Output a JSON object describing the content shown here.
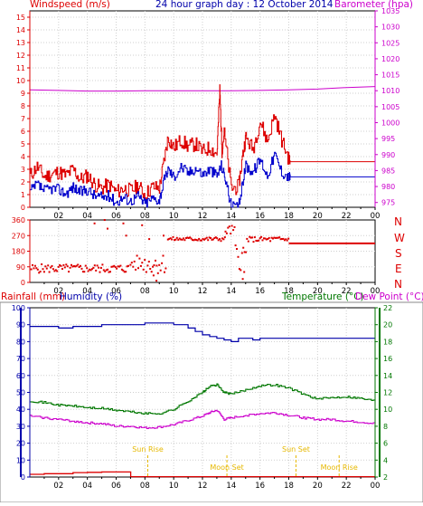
{
  "chart_data": [
    {
      "id": "wind_baro",
      "type": "line",
      "title": "24 hour graph day : 12 October 2014",
      "left_axis_label": "Windspeed (m/s)",
      "right_axis_label": "Barometer (hpa)",
      "left_ylim": [
        0,
        15.5
      ],
      "right_ylim": [
        973.5,
        1035
      ],
      "left_ticks": [
        0,
        1,
        2,
        3,
        4,
        5,
        6,
        7,
        8,
        9,
        10,
        11,
        12,
        13,
        14,
        15
      ],
      "right_ticks": [
        975,
        980,
        985,
        990,
        995,
        1000,
        1005,
        1010,
        1015,
        1020,
        1025,
        1030,
        1035
      ],
      "x_ticks": [
        "02",
        "04",
        "06",
        "08",
        "10",
        "12",
        "14",
        "16",
        "18",
        "20",
        "22",
        "00"
      ],
      "series": [
        {
          "name": "Barometer",
          "axis": "right",
          "color": "#cc00cc",
          "x": [
            0,
            2,
            4,
            6,
            8,
            10,
            12,
            14,
            16,
            18,
            20,
            22,
            24
          ],
          "values": [
            1010.3,
            1010.1,
            1009.9,
            1009.9,
            1010.0,
            1010.0,
            1010.0,
            1010.0,
            1010.1,
            1010.3,
            1010.5,
            1011.0,
            1011.3
          ]
        },
        {
          "name": "Gust",
          "axis": "left",
          "color": "#dd0000",
          "x": [
            0,
            0.5,
            1,
            1.5,
            2,
            2.5,
            3,
            3.5,
            4,
            4.5,
            5,
            5.5,
            6,
            6.5,
            7,
            7.5,
            8,
            8.5,
            9,
            9.3,
            9.6,
            10,
            10.5,
            11,
            11.5,
            12,
            12.5,
            13,
            13.2,
            13.35,
            13.5,
            14,
            14.5,
            14.8,
            15,
            15.5,
            16,
            16.5,
            17,
            17.5,
            18,
            18.1,
            24
          ],
          "values": [
            2.5,
            3.2,
            2.4,
            2.6,
            2.8,
            2.5,
            3.0,
            2.2,
            2.5,
            1.8,
            1.5,
            1.8,
            1.2,
            1.5,
            1.3,
            1.7,
            1.0,
            1.6,
            1.5,
            3.5,
            5.5,
            4.7,
            5.3,
            4.8,
            5.0,
            4.4,
            4.7,
            4.2,
            9.3,
            4.5,
            5.8,
            1.5,
            1.6,
            4.2,
            5.5,
            4.6,
            6.8,
            5.2,
            7.3,
            5.3,
            3.8,
            3.6,
            3.6
          ]
        },
        {
          "name": "Wind speed",
          "axis": "left",
          "color": "#0000cc",
          "x": [
            0,
            0.5,
            1,
            1.5,
            2,
            2.5,
            3,
            3.5,
            4,
            4.5,
            5,
            5.5,
            6,
            6.5,
            7,
            7.5,
            8,
            8.5,
            9,
            9.3,
            9.6,
            10,
            10.5,
            11,
            11.5,
            12,
            12.5,
            13,
            13.3,
            13.6,
            14,
            14.5,
            14.8,
            15,
            15.5,
            16,
            16.5,
            17,
            17.5,
            18,
            18.1,
            24
          ],
          "values": [
            1.2,
            1.8,
            1.3,
            1.5,
            1.4,
            1.1,
            1.6,
            1.2,
            1.4,
            0.9,
            0.8,
            0.9,
            0.4,
            0.8,
            0.5,
            0.9,
            0.3,
            0.7,
            0.6,
            2.0,
            3.0,
            2.4,
            3.2,
            2.7,
            3.1,
            2.6,
            3.0,
            2.5,
            3.3,
            2.2,
            0,
            0,
            2.0,
            3.3,
            2.8,
            3.8,
            2.5,
            4.2,
            2.8,
            2.4,
            2.4,
            2.4
          ]
        }
      ]
    },
    {
      "id": "wind_dir",
      "type": "scatter",
      "right_axis_label": [
        "N",
        "W",
        "S",
        "E",
        "N"
      ],
      "ylim": [
        0,
        360
      ],
      "left_ticks": [
        0,
        90,
        180,
        270,
        360
      ],
      "x_ticks": [
        "02",
        "04",
        "06",
        "08",
        "10",
        "12",
        "14",
        "16",
        "18",
        "20",
        "22",
        "00"
      ],
      "series": [
        {
          "name": "Direction",
          "color": "#dd0000",
          "segments": [
            {
              "x0": 0.1,
              "x1": 6.9,
              "base": 80,
              "amp": 25
            },
            {
              "x0": 7.0,
              "x1": 8.0,
              "base": 110,
              "amp": 45
            },
            {
              "x0": 8.1,
              "x1": 9.5,
              "base": 110,
              "amp": 60
            },
            {
              "x0": 9.6,
              "x1": 13.6,
              "base": 250,
              "amp": 12
            },
            {
              "x0": 13.6,
              "x1": 14.3,
              "base": 300,
              "amp": 30
            },
            {
              "x0": 14.3,
              "x1": 15.1,
              "base": 150,
              "amp": 80
            },
            {
              "x0": 15.1,
              "x1": 18.0,
              "base": 248,
              "amp": 15
            }
          ],
          "outliers": [
            [
              4.5,
              340
            ],
            [
              5.2,
              360
            ],
            [
              5.4,
              310
            ],
            [
              6.5,
              340
            ],
            [
              6.7,
              270
            ],
            [
              7.8,
              330
            ],
            [
              8.3,
              250
            ],
            [
              8.6,
              40
            ],
            [
              8.8,
              10
            ],
            [
              9.3,
              270
            ],
            [
              14.8,
              20
            ],
            [
              14.9,
              60
            ]
          ],
          "flat": {
            "x0": 18.0,
            "x1": 24,
            "value": 225
          }
        }
      ]
    },
    {
      "id": "temp_hum",
      "type": "line",
      "left_axis_label": "Rainfall (mm)",
      "left_axis_label_2": "Humidity (%)",
      "right_axis_label": "Temperature (°C)",
      "right_axis_label_2": "Dew Point (°C)",
      "left_ylim": [
        0,
        100
      ],
      "right_ylim": [
        2,
        22
      ],
      "left_ticks": [
        0,
        10,
        20,
        30,
        40,
        50,
        60,
        70,
        80,
        90,
        100
      ],
      "right_ticks": [
        2,
        4,
        6,
        8,
        10,
        12,
        14,
        16,
        18,
        20,
        22
      ],
      "x_ticks": [
        "02",
        "04",
        "06",
        "08",
        "10",
        "12",
        "14",
        "16",
        "18",
        "20",
        "22",
        "00"
      ],
      "annotations": [
        {
          "label": "Sun Rise",
          "x": 8.2
        },
        {
          "label": "Moon Set",
          "x": 13.7
        },
        {
          "label": "Sun Set",
          "x": 18.5
        },
        {
          "label": "Moon Rise",
          "x": 21.5
        }
      ],
      "series": [
        {
          "name": "Humidity",
          "axis": "left",
          "color": "#0000aa",
          "x": [
            0,
            1.5,
            2,
            3,
            4,
            5,
            6,
            7,
            8,
            9,
            10,
            11,
            11.5,
            12,
            12.5,
            13,
            13.5,
            14,
            14.5,
            15,
            15.5,
            16,
            17,
            18,
            20,
            22,
            24
          ],
          "values": [
            89,
            89,
            88,
            89,
            89,
            90,
            90,
            90,
            91,
            91,
            90,
            88,
            86,
            84,
            83,
            82,
            81,
            80,
            82,
            82,
            81,
            82,
            82,
            82,
            82,
            82,
            82
          ]
        },
        {
          "name": "Temperature",
          "axis": "right",
          "color": "#007700",
          "x": [
            0,
            1,
            2,
            3,
            4,
            5,
            6,
            7,
            8,
            9,
            10,
            11,
            12,
            12.5,
            13,
            13.5,
            14,
            15,
            16,
            17,
            18,
            19,
            20,
            21,
            22,
            23,
            24
          ],
          "values": [
            11.0,
            10.8,
            10.5,
            10.4,
            10.2,
            10.1,
            9.9,
            9.7,
            9.5,
            9.5,
            10.0,
            11.0,
            12.0,
            12.7,
            12.9,
            12.0,
            11.8,
            12.3,
            12.8,
            12.9,
            12.5,
            11.8,
            11.2,
            11.4,
            11.5,
            11.3,
            11.0
          ]
        },
        {
          "name": "Dew Point",
          "axis": "right",
          "color": "#cc00cc",
          "x": [
            0,
            1,
            2,
            3,
            4,
            5,
            6,
            7,
            8,
            9,
            10,
            11,
            12,
            12.5,
            13,
            13.5,
            14,
            15,
            16,
            17,
            18,
            19,
            20,
            21,
            22,
            23,
            24
          ],
          "values": [
            9.2,
            9.0,
            8.8,
            8.6,
            8.4,
            8.3,
            8.0,
            8.0,
            7.8,
            7.9,
            8.2,
            8.7,
            9.2,
            9.6,
            9.9,
            8.8,
            9.0,
            9.3,
            9.5,
            9.6,
            9.3,
            9.0,
            8.8,
            8.8,
            8.6,
            8.5,
            8.3
          ]
        },
        {
          "name": "Rainfall",
          "axis": "left",
          "color": "#dd0000",
          "x": [
            0,
            1,
            2,
            3,
            4,
            5,
            6,
            7.0,
            7.01,
            24
          ],
          "values": [
            1.6,
            2.0,
            2.0,
            2.6,
            2.8,
            3.0,
            3.0,
            3.0,
            0.2,
            0.2
          ]
        }
      ]
    }
  ]
}
